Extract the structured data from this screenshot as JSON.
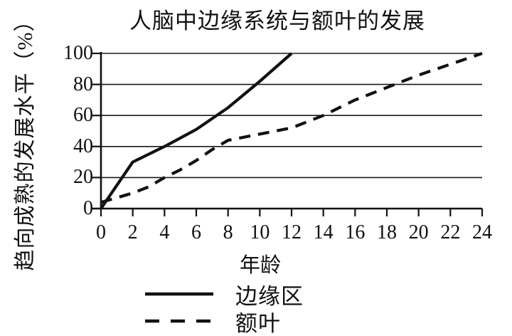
{
  "title": "人脑中边缘系统与额叶的发展",
  "colors": {
    "background": "#ffffff",
    "line": "#111111",
    "grid": "#1a1a1a"
  },
  "chart_data": {
    "type": "line",
    "title": "人脑中边缘系统与额叶的发展",
    "xlabel": "年龄",
    "ylabel": "趋向成熟的发展水平（%）",
    "xlim": [
      0,
      24
    ],
    "ylim": [
      0,
      100
    ],
    "x_ticks": [
      0,
      2,
      4,
      6,
      8,
      10,
      12,
      14,
      16,
      18,
      20,
      22,
      24
    ],
    "y_ticks": [
      100,
      80,
      60,
      40,
      20,
      0
    ],
    "grid": "horizontal gridlines at 20/40/60/80/100",
    "legend_position": "below chart, left-aligned",
    "series": [
      {
        "name": "边缘区",
        "style": "solid",
        "x": [
          0,
          2,
          4,
          6,
          7,
          8,
          10,
          12
        ],
        "y": [
          0,
          30,
          40,
          51,
          58,
          65,
          82,
          100
        ]
      },
      {
        "name": "额叶",
        "style": "dashed",
        "x": [
          0,
          1,
          2,
          3,
          4,
          5,
          6,
          7,
          8,
          10,
          12,
          14,
          16,
          18,
          20,
          22,
          24
        ],
        "y": [
          4,
          7,
          10,
          14,
          20,
          25,
          31,
          38,
          44,
          48,
          52,
          60,
          70,
          78,
          86,
          93,
          100
        ]
      }
    ]
  }
}
